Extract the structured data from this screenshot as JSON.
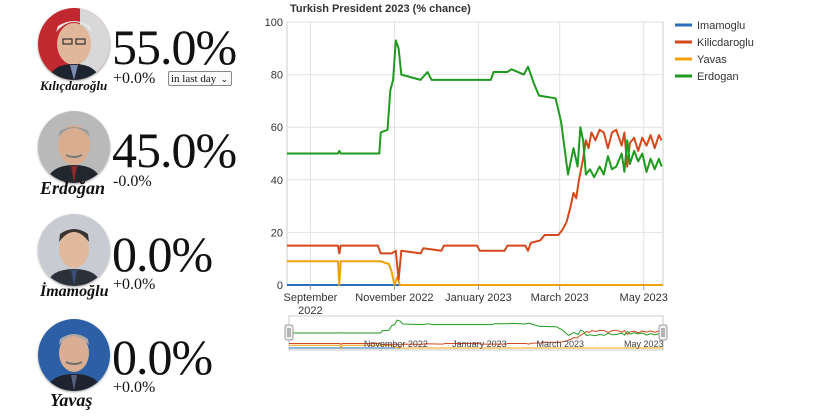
{
  "candidates": [
    {
      "name": "Kılıçdaroğlu",
      "percent": "55.0%",
      "change": "+0.0%"
    },
    {
      "name": "Erdoğan",
      "percent": "45.0%",
      "change": "-0.0%"
    },
    {
      "name": "İmamoğlu",
      "percent": "0.0%",
      "change": "+0.0%"
    },
    {
      "name": "Yavaş",
      "percent": "0.0%",
      "change": "+0.0%"
    }
  ],
  "period_select": {
    "value": "in last day"
  },
  "colors": {
    "Imamoglu": "#2a6ebb",
    "Kilicdaroglu": "#d4481c",
    "Yavas": "#f0a20c",
    "Erdogan": "#1f9a1f"
  },
  "chart_data": {
    "type": "line",
    "title": "Turkish President 2023 (% chance)",
    "xlabel": "",
    "ylabel": "",
    "ylim": [
      0,
      100
    ],
    "yticks": [
      0,
      20,
      40,
      60,
      80,
      100
    ],
    "xlim": [
      "2022-08-15",
      "2023-05-15"
    ],
    "xticks": [
      {
        "date": "2022-09-01",
        "label": "September 2022"
      },
      {
        "date": "2022-11-01",
        "label": "November 2022"
      },
      {
        "date": "2023-01-01",
        "label": "January 2023"
      },
      {
        "date": "2023-03-01",
        "label": "March 2023"
      },
      {
        "date": "2023-05-01",
        "label": "May 2023"
      }
    ],
    "navigator_labels": [
      {
        "date": "2022-11-01",
        "label": "November 2022"
      },
      {
        "date": "2023-01-01",
        "label": "January 2023"
      },
      {
        "date": "2023-03-01",
        "label": "March 2023"
      },
      {
        "date": "2023-05-01",
        "label": "May 2023"
      }
    ],
    "grid": true,
    "legend_position": "top-right",
    "series": [
      {
        "name": "Imamoglu",
        "points": [
          [
            "2022-08-15",
            0
          ],
          [
            "2023-05-15",
            0
          ]
        ]
      },
      {
        "name": "Kilicdaroglu",
        "points": [
          [
            "2022-08-15",
            15
          ],
          [
            "2022-09-21",
            15
          ],
          [
            "2022-09-22",
            12
          ],
          [
            "2022-09-23",
            15
          ],
          [
            "2022-10-20",
            15
          ],
          [
            "2022-10-22",
            12
          ],
          [
            "2022-10-30",
            12
          ],
          [
            "2022-11-02",
            13
          ],
          [
            "2022-11-04",
            2
          ],
          [
            "2022-11-06",
            13
          ],
          [
            "2022-11-20",
            12
          ],
          [
            "2022-11-22",
            14
          ],
          [
            "2022-12-05",
            13
          ],
          [
            "2022-12-07",
            15
          ],
          [
            "2022-12-31",
            15
          ],
          [
            "2023-01-02",
            13
          ],
          [
            "2023-01-20",
            13
          ],
          [
            "2023-01-22",
            15
          ],
          [
            "2023-02-04",
            15
          ],
          [
            "2023-02-06",
            13
          ],
          [
            "2023-02-08",
            16
          ],
          [
            "2023-02-15",
            17
          ],
          [
            "2023-02-18",
            19
          ],
          [
            "2023-02-28",
            19
          ],
          [
            "2023-03-03",
            21
          ],
          [
            "2023-03-06",
            24
          ],
          [
            "2023-03-09",
            30
          ],
          [
            "2023-03-11",
            35
          ],
          [
            "2023-03-13",
            33
          ],
          [
            "2023-03-15",
            40
          ],
          [
            "2023-03-18",
            48
          ],
          [
            "2023-03-20",
            55
          ],
          [
            "2023-03-22",
            52
          ],
          [
            "2023-03-24",
            58
          ],
          [
            "2023-03-27",
            55
          ],
          [
            "2023-03-30",
            59
          ],
          [
            "2023-04-02",
            58
          ],
          [
            "2023-04-05",
            52
          ],
          [
            "2023-04-08",
            58
          ],
          [
            "2023-04-11",
            59
          ],
          [
            "2023-04-15",
            53
          ],
          [
            "2023-04-17",
            58
          ],
          [
            "2023-04-19",
            45
          ],
          [
            "2023-04-21",
            54
          ],
          [
            "2023-04-24",
            56
          ],
          [
            "2023-04-27",
            51
          ],
          [
            "2023-04-30",
            56
          ],
          [
            "2023-05-03",
            53
          ],
          [
            "2023-05-06",
            57
          ],
          [
            "2023-05-09",
            52
          ],
          [
            "2023-05-12",
            57
          ],
          [
            "2023-05-14",
            55
          ]
        ]
      },
      {
        "name": "Yavas",
        "points": [
          [
            "2022-08-15",
            9
          ],
          [
            "2022-09-21",
            9
          ],
          [
            "2022-09-22",
            0
          ],
          [
            "2022-09-23",
            9
          ],
          [
            "2022-10-22",
            9
          ],
          [
            "2022-10-28",
            8
          ],
          [
            "2022-10-30",
            5
          ],
          [
            "2022-11-01",
            0
          ],
          [
            "2022-11-03",
            3
          ],
          [
            "2022-11-05",
            0
          ],
          [
            "2023-05-15",
            0
          ]
        ]
      },
      {
        "name": "Erdogan",
        "points": [
          [
            "2022-08-15",
            50
          ],
          [
            "2022-09-21",
            50
          ],
          [
            "2022-09-22",
            51
          ],
          [
            "2022-09-23",
            50
          ],
          [
            "2022-10-21",
            50
          ],
          [
            "2022-10-22",
            58
          ],
          [
            "2022-10-27",
            59
          ],
          [
            "2022-10-29",
            74
          ],
          [
            "2022-10-31",
            78
          ],
          [
            "2022-11-02",
            93
          ],
          [
            "2022-11-04",
            90
          ],
          [
            "2022-11-06",
            80
          ],
          [
            "2022-11-20",
            78
          ],
          [
            "2022-11-25",
            81
          ],
          [
            "2022-11-28",
            78
          ],
          [
            "2023-01-10",
            78
          ],
          [
            "2023-01-12",
            81
          ],
          [
            "2023-01-22",
            81
          ],
          [
            "2023-01-25",
            82
          ],
          [
            "2023-02-03",
            80
          ],
          [
            "2023-02-06",
            83
          ],
          [
            "2023-02-08",
            80
          ],
          [
            "2023-02-10",
            77
          ],
          [
            "2023-02-14",
            72
          ],
          [
            "2023-02-26",
            71
          ],
          [
            "2023-03-02",
            62
          ],
          [
            "2023-03-07",
            42
          ],
          [
            "2023-03-11",
            52
          ],
          [
            "2023-03-14",
            45
          ],
          [
            "2023-03-16",
            60
          ],
          [
            "2023-03-18",
            55
          ],
          [
            "2023-03-20",
            42
          ],
          [
            "2023-03-23",
            44
          ],
          [
            "2023-03-26",
            41
          ],
          [
            "2023-03-30",
            45
          ],
          [
            "2023-04-02",
            42
          ],
          [
            "2023-04-05",
            49
          ],
          [
            "2023-04-08",
            44
          ],
          [
            "2023-04-11",
            45
          ],
          [
            "2023-04-15",
            50
          ],
          [
            "2023-04-17",
            43
          ],
          [
            "2023-04-19",
            55
          ],
          [
            "2023-04-21",
            46
          ],
          [
            "2023-04-24",
            51
          ],
          [
            "2023-04-27",
            47
          ],
          [
            "2023-04-30",
            50
          ],
          [
            "2023-05-03",
            43
          ],
          [
            "2023-05-06",
            48
          ],
          [
            "2023-05-09",
            44
          ],
          [
            "2023-05-12",
            48
          ],
          [
            "2023-05-14",
            45
          ]
        ]
      }
    ]
  }
}
